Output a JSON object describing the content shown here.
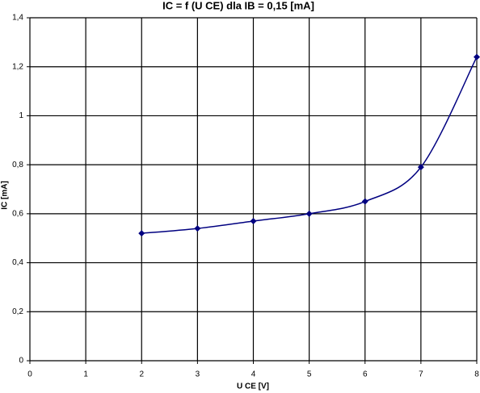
{
  "chart_data": {
    "type": "line",
    "title": "IC = f (U CE)  dla IB = 0,15 [mA]",
    "xlabel": "U CE [V]",
    "ylabel": "IC  [mA]",
    "x": [
      2,
      3,
      4,
      5,
      6,
      7,
      8
    ],
    "series": [
      {
        "name": "IC",
        "color": "#000080",
        "values": [
          0.52,
          0.54,
          0.57,
          0.6,
          0.65,
          0.79,
          1.24
        ]
      }
    ],
    "xlim": [
      0,
      8
    ],
    "xticks": [
      0,
      1,
      2,
      3,
      4,
      5,
      6,
      7,
      8
    ],
    "ylim": [
      0,
      1.4
    ],
    "yticks": [
      0,
      {
        "value": 0.2,
        "label": "0,2"
      },
      {
        "value": 0.4,
        "label": "0,4"
      },
      {
        "value": 0.6,
        "label": "0,6"
      },
      {
        "value": 0.8,
        "label": "0,8"
      },
      1,
      {
        "value": 1.2,
        "label": "1,2"
      },
      {
        "value": 1.4,
        "label": "1,4"
      }
    ],
    "grid": true,
    "smooth": true
  }
}
